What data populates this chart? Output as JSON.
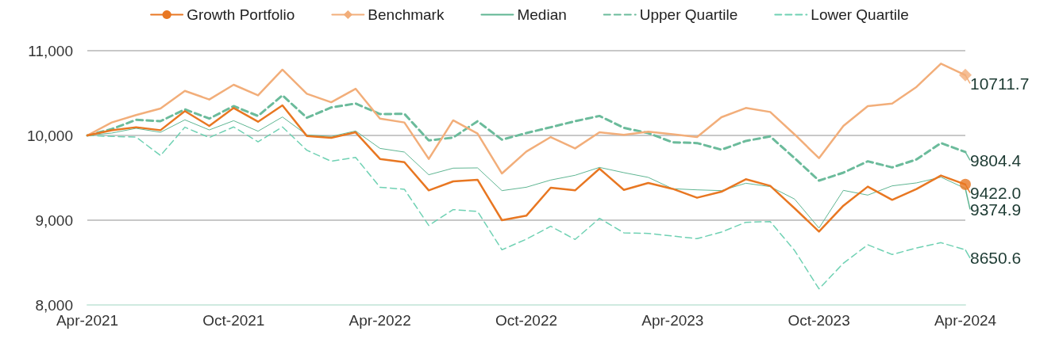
{
  "chart_data": {
    "type": "line",
    "categories": [
      "Apr-2021",
      null,
      null,
      null,
      null,
      null,
      "Oct-2021",
      null,
      null,
      null,
      null,
      null,
      "Apr-2022",
      null,
      null,
      null,
      null,
      null,
      "Oct-2022",
      null,
      null,
      null,
      null,
      null,
      "Apr-2023",
      null,
      null,
      null,
      null,
      null,
      "Oct-2023",
      null,
      null,
      null,
      null,
      null,
      "Apr-2024"
    ],
    "series": [
      {
        "name": "Growth Portfolio",
        "color": "#e87722",
        "line_style": "solid",
        "values": [
          10000,
          10060,
          10097,
          10062,
          10287,
          10112,
          10324,
          10162,
          10355,
          9994,
          9972,
          10037,
          9723,
          9685,
          9352,
          9458,
          9477,
          9000,
          9053,
          9383,
          9352,
          9608,
          9358,
          9439,
          9370,
          9265,
          9336,
          9483,
          9405,
          9140,
          8866,
          9171,
          9396,
          9240,
          9368,
          9527,
          9422.0
        ],
        "value_labels": [
          null,
          null,
          null,
          null,
          null,
          null,
          null,
          null,
          null,
          null,
          null,
          null,
          null,
          null,
          null,
          null,
          null,
          null,
          null,
          null,
          null,
          null,
          null,
          null,
          null,
          null,
          null,
          null,
          null,
          null,
          null,
          null,
          null,
          null,
          null,
          null,
          "9422.0"
        ]
      },
      {
        "name": "Benchmark",
        "color": "#f2ae7a",
        "line_style": "solid",
        "values": [
          10000,
          10153,
          10240,
          10318,
          10526,
          10424,
          10598,
          10473,
          10776,
          10492,
          10392,
          10551,
          10199,
          10153,
          9723,
          10178,
          10022,
          9551,
          9810,
          9981,
          9847,
          10037,
          10006,
          10044,
          10015,
          9981,
          10215,
          10324,
          10277,
          10012,
          9732,
          10112,
          10346,
          10377,
          10573,
          10847,
          10711.7
        ],
        "value_labels": [
          null,
          null,
          null,
          null,
          null,
          null,
          null,
          null,
          null,
          null,
          null,
          null,
          null,
          null,
          null,
          null,
          null,
          null,
          null,
          null,
          null,
          null,
          null,
          null,
          null,
          null,
          null,
          null,
          null,
          null,
          null,
          null,
          null,
          null,
          null,
          null,
          "10711.7"
        ]
      },
      {
        "name": "Median",
        "color": "#5fb592",
        "line_style": "solid",
        "values": [
          10000,
          10028,
          10084,
          10037,
          10184,
          10065,
          10174,
          10050,
          10218,
          10006,
          9988,
          10053,
          9847,
          9804,
          9536,
          9614,
          9617,
          9349,
          9389,
          9474,
          9530,
          9623,
          9561,
          9505,
          9371,
          9358,
          9349,
          9436,
          9396,
          9249,
          8907,
          9352,
          9296,
          9405,
          9440,
          9508,
          9374.9
        ],
        "value_labels": [
          null,
          null,
          null,
          null,
          null,
          null,
          null,
          null,
          null,
          null,
          null,
          null,
          null,
          null,
          null,
          null,
          null,
          null,
          null,
          null,
          null,
          null,
          null,
          null,
          null,
          null,
          null,
          null,
          null,
          null,
          null,
          null,
          null,
          null,
          null,
          null,
          "9374.9"
        ]
      },
      {
        "name": "Upper Quartile",
        "color": "#6bbb9b",
        "line_style": "dashed",
        "values": [
          10000,
          10075,
          10184,
          10168,
          10308,
          10199,
          10346,
          10230,
          10473,
          10209,
          10330,
          10377,
          10252,
          10255,
          9941,
          9975,
          10168,
          9950,
          10028,
          10097,
          10168,
          10230,
          10090,
          10028,
          9919,
          9910,
          9832,
          9935,
          9988,
          9732,
          9467,
          9561,
          9695,
          9623,
          9717,
          9910,
          9804.4
        ],
        "value_labels": [
          null,
          null,
          null,
          null,
          null,
          null,
          null,
          null,
          null,
          null,
          null,
          null,
          null,
          null,
          null,
          null,
          null,
          null,
          null,
          null,
          null,
          null,
          null,
          null,
          null,
          null,
          null,
          null,
          null,
          null,
          null,
          null,
          null,
          null,
          null,
          null,
          "9804.4"
        ]
      },
      {
        "name": "Lower Quartile",
        "color": "#6fd1b3",
        "line_style": "dashed",
        "values": [
          10000,
          9988,
          9981,
          9763,
          10097,
          9975,
          10100,
          9925,
          10100,
          9826,
          9695,
          9741,
          9389,
          9365,
          8938,
          9125,
          9103,
          8651,
          8776,
          8928,
          8773,
          9022,
          8851,
          8844,
          8813,
          8782,
          8860,
          8975,
          8984,
          8642,
          8190,
          8492,
          8710,
          8595,
          8673,
          8735,
          8650.6
        ],
        "value_labels": [
          null,
          null,
          null,
          null,
          null,
          null,
          null,
          null,
          null,
          null,
          null,
          null,
          null,
          null,
          null,
          null,
          null,
          null,
          null,
          null,
          null,
          null,
          null,
          null,
          null,
          null,
          null,
          null,
          null,
          null,
          null,
          null,
          null,
          null,
          null,
          null,
          "8650.6"
        ]
      },
      {
        "type": "scatter",
        "color": "#e87722",
        "marker": "circle",
        "x": [
          "Apr-2024"
        ],
        "values": [
          9422.0
        ]
      },
      {
        "type": "scatter",
        "color": "#f2ae7a",
        "marker": "diamond",
        "x": [
          "Apr-2024"
        ],
        "values": [
          10711.7
        ]
      }
    ],
    "ylim": [
      8000,
      11000
    ],
    "yticks": [
      {
        "value": 8000,
        "label": "8,000"
      },
      {
        "value": 9000,
        "label": "9,000"
      },
      {
        "value": 10000,
        "label": "10,000"
      },
      {
        "value": 11000,
        "label": "11,000"
      }
    ],
    "grid": "y",
    "legend": "top"
  }
}
